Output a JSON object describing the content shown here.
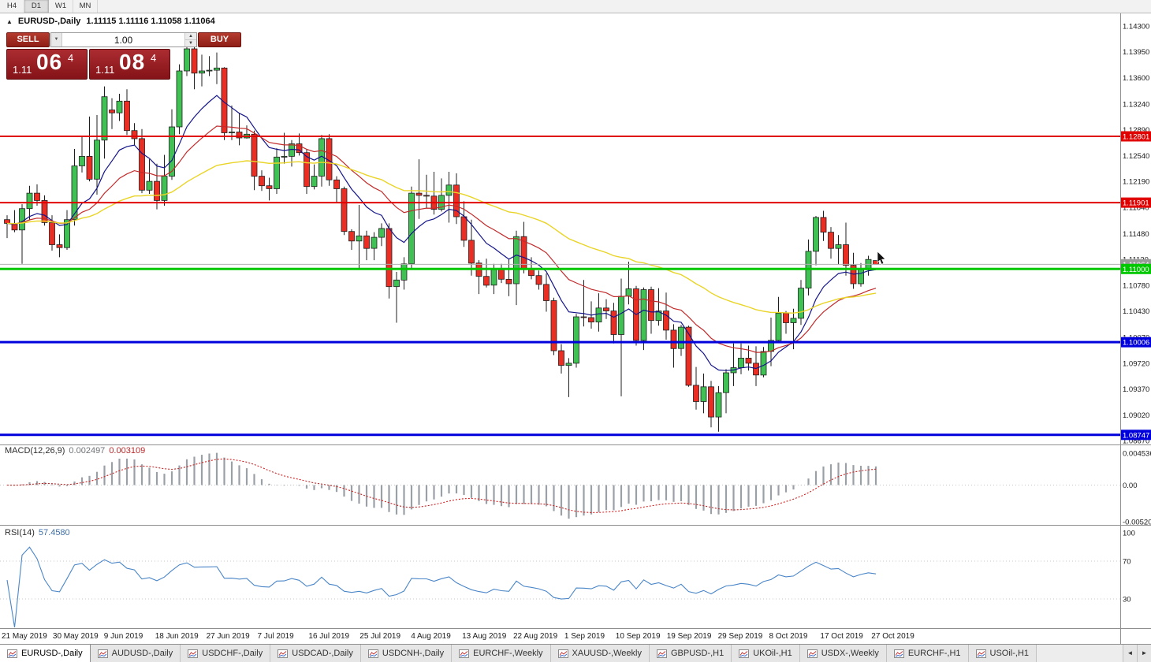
{
  "toolbar": {
    "buttons": [
      "H4",
      "D1",
      "W1",
      "MN"
    ],
    "active": "D1"
  },
  "chart_header": {
    "toggle_icon": "▲",
    "title": "EURUSD-,Daily",
    "ohlc": "1.11115 1.11116 1.11058 1.11064"
  },
  "trade_panel": {
    "sell_label": "SELL",
    "buy_label": "BUY",
    "volume": "1.00",
    "dropdown_icon": "▼",
    "spin_up_icon": "▲",
    "spin_down_icon": "▼",
    "sell_price_small": "1.11",
    "sell_price_big": "06",
    "sell_price_sup": "4",
    "buy_price_small": "1.11",
    "buy_price_big": "08",
    "buy_price_sup": "4",
    "panel_color": "#9a1c20"
  },
  "indicators": {
    "macd_label": "MACD(12,26,9)",
    "macd_value": "0.002497",
    "macd_signal_value": "0.003109",
    "rsi_label": "RSI(14)",
    "rsi_value": "57.4580"
  },
  "bottom_tabs": {
    "tabs": [
      "EURUSD-,Daily",
      "AUDUSD-,Daily",
      "USDCHF-,Daily",
      "USDCAD-,Daily",
      "USDCNH-,Daily",
      "EURCHF-,Weekly",
      "XAUUSD-,Weekly",
      "GBPUSD-,H1",
      "UKOil-,H1",
      "USDX-,Weekly",
      "EURCHF-,H1",
      "USOil-,H1"
    ],
    "active_index": 0,
    "left_arrow_icon": "◄",
    "right_arrow_icon": "►"
  },
  "chart_data": {
    "type": "candlestick",
    "symbol": "EURUSD-",
    "timeframe": "Daily",
    "price_axis_ticks": [
      "1.14300",
      "1.13950",
      "1.13600",
      "1.13240",
      "1.12890",
      "1.12540",
      "1.12190",
      "1.11840",
      "1.11480",
      "1.11130",
      "1.10780",
      "1.10430",
      "1.10070",
      "1.09720",
      "1.09370",
      "1.09020",
      "1.08670"
    ],
    "x_axis_labels": [
      "21 May 2019",
      "30 May 2019",
      "9 Jun 2019",
      "18 Jun 2019",
      "27 Jun 2019",
      "7 Jul 2019",
      "16 Jul 2019",
      "25 Jul 2019",
      "4 Aug 2019",
      "13 Aug 2019",
      "22 Aug 2019",
      "1 Sep 2019",
      "10 Sep 2019",
      "19 Sep 2019",
      "29 Sep 2019",
      "8 Oct 2019",
      "17 Oct 2019",
      "27 Oct 2019"
    ],
    "candle_colors": {
      "up": "#3fc253",
      "down": "#ea2e24",
      "outline": "#1f1f1f"
    },
    "candles": [
      [
        1.1167,
        1.1173,
        1.1142,
        1.1162
      ],
      [
        1.1162,
        1.118,
        1.115,
        1.1153
      ],
      [
        1.1153,
        1.1188,
        1.1107,
        1.1182
      ],
      [
        1.1182,
        1.1213,
        1.1166,
        1.1203
      ],
      [
        1.1203,
        1.1215,
        1.1186,
        1.1193
      ],
      [
        1.1193,
        1.12,
        1.1159,
        1.1163
      ],
      [
        1.1163,
        1.1173,
        1.1125,
        1.1133
      ],
      [
        1.1133,
        1.1147,
        1.1116,
        1.1129
      ],
      [
        1.1129,
        1.118,
        1.1126,
        1.1167
      ],
      [
        1.1167,
        1.1263,
        1.1159,
        1.124
      ],
      [
        1.124,
        1.128,
        1.1231,
        1.1253
      ],
      [
        1.1253,
        1.1307,
        1.1219,
        1.1222
      ],
      [
        1.1222,
        1.1309,
        1.1201,
        1.1275
      ],
      [
        1.1275,
        1.1348,
        1.125,
        1.1334
      ],
      [
        1.1316,
        1.1332,
        1.129,
        1.1312
      ],
      [
        1.1312,
        1.1338,
        1.1301,
        1.1328
      ],
      [
        1.1328,
        1.1344,
        1.1282,
        1.1288
      ],
      [
        1.1288,
        1.1298,
        1.1268,
        1.1277
      ],
      [
        1.1277,
        1.129,
        1.1203,
        1.1207
      ],
      [
        1.1207,
        1.1249,
        1.1202,
        1.1219
      ],
      [
        1.1219,
        1.1243,
        1.1181,
        1.1193
      ],
      [
        1.1193,
        1.1255,
        1.1186,
        1.1226
      ],
      [
        1.1226,
        1.1317,
        1.1221,
        1.1293
      ],
      [
        1.1293,
        1.1378,
        1.1283,
        1.1369
      ],
      [
        1.1369,
        1.1406,
        1.1362,
        1.1399
      ],
      [
        1.1399,
        1.1412,
        1.1344,
        1.1366
      ],
      [
        1.1366,
        1.1391,
        1.1348,
        1.1369
      ],
      [
        1.1369,
        1.1389,
        1.1362,
        1.137
      ],
      [
        1.137,
        1.1394,
        1.1351,
        1.1373
      ],
      [
        1.1373,
        1.1374,
        1.1275,
        1.1285
      ],
      [
        1.1285,
        1.1322,
        1.1275,
        1.1286
      ],
      [
        1.1286,
        1.1312,
        1.1268,
        1.1278
      ],
      [
        1.1278,
        1.1295,
        1.1277,
        1.1283
      ],
      [
        1.1283,
        1.1288,
        1.1207,
        1.1226
      ],
      [
        1.1226,
        1.1234,
        1.1206,
        1.1213
      ],
      [
        1.1213,
        1.1224,
        1.1193,
        1.1209
      ],
      [
        1.1209,
        1.1264,
        1.1202,
        1.1252
      ],
      [
        1.1252,
        1.1285,
        1.1243,
        1.1253
      ],
      [
        1.1253,
        1.1275,
        1.1239,
        1.127
      ],
      [
        1.127,
        1.1284,
        1.1254,
        1.1258
      ],
      [
        1.1258,
        1.1262,
        1.1202,
        1.1212
      ],
      [
        1.1212,
        1.1242,
        1.1208,
        1.1226
      ],
      [
        1.1226,
        1.1282,
        1.1212,
        1.1277
      ],
      [
        1.1277,
        1.1283,
        1.1213,
        1.1221
      ],
      [
        1.1221,
        1.1226,
        1.119,
        1.1209
      ],
      [
        1.1209,
        1.1212,
        1.1146,
        1.1151
      ],
      [
        1.1151,
        1.1154,
        1.1126,
        1.1138
      ],
      [
        1.1138,
        1.1187,
        1.1101,
        1.1145
      ],
      [
        1.1145,
        1.1152,
        1.1112,
        1.1128
      ],
      [
        1.1128,
        1.115,
        1.1112,
        1.1143
      ],
      [
        1.1143,
        1.1162,
        1.1131,
        1.1155
      ],
      [
        1.1155,
        1.1162,
        1.106,
        1.1076
      ],
      [
        1.1076,
        1.1096,
        1.1027,
        1.1085
      ],
      [
        1.1085,
        1.1116,
        1.1072,
        1.1107
      ],
      [
        1.1107,
        1.1212,
        1.1101,
        1.1203
      ],
      [
        1.1203,
        1.1249,
        1.1168,
        1.12
      ],
      [
        1.12,
        1.1228,
        1.1183,
        1.1199
      ],
      [
        1.1199,
        1.1232,
        1.1174,
        1.1181
      ],
      [
        1.1181,
        1.1223,
        1.1178,
        1.12
      ],
      [
        1.12,
        1.1232,
        1.1163,
        1.1214
      ],
      [
        1.1214,
        1.123,
        1.1161,
        1.1171
      ],
      [
        1.1171,
        1.1192,
        1.113,
        1.1139
      ],
      [
        1.1139,
        1.1167,
        1.1091,
        1.1108
      ],
      [
        1.1108,
        1.1112,
        1.1066,
        1.109
      ],
      [
        1.109,
        1.1114,
        1.1075,
        1.1078
      ],
      [
        1.1078,
        1.1107,
        1.1066,
        1.1099
      ],
      [
        1.1099,
        1.1107,
        1.1081,
        1.1086
      ],
      [
        1.1086,
        1.1113,
        1.1063,
        1.108
      ],
      [
        1.108,
        1.1152,
        1.1051,
        1.1144
      ],
      [
        1.1144,
        1.1164,
        1.1094,
        1.1101
      ],
      [
        1.1101,
        1.1116,
        1.1086,
        1.1091
      ],
      [
        1.1091,
        1.1098,
        1.1072,
        1.1079
      ],
      [
        1.1079,
        1.1094,
        1.1042,
        1.1057
      ],
      [
        1.1057,
        1.1061,
        1.0983,
        1.0989
      ],
      [
        1.0989,
        1.0998,
        1.0958,
        1.0969
      ],
      [
        1.0969,
        1.0979,
        1.0926,
        1.0972
      ],
      [
        1.0972,
        1.1039,
        1.0966,
        1.1035
      ],
      [
        1.1035,
        1.1085,
        1.1022,
        1.1034
      ],
      [
        1.1034,
        1.1056,
        1.1019,
        1.1028
      ],
      [
        1.1028,
        1.1067,
        1.1015,
        1.1047
      ],
      [
        1.1047,
        1.1059,
        1.1032,
        1.1043
      ],
      [
        1.1043,
        1.1054,
        1.0999,
        1.1011
      ],
      [
        1.1011,
        1.1087,
        1.0927,
        1.1063
      ],
      [
        1.1063,
        1.111,
        1.1052,
        1.1073
      ],
      [
        1.1073,
        1.1077,
        1.0996,
        1.1003
      ],
      [
        1.1003,
        1.1075,
        1.099,
        1.1072
      ],
      [
        1.1072,
        1.1076,
        1.1012,
        1.103
      ],
      [
        1.103,
        1.1074,
        1.1023,
        1.1043
      ],
      [
        1.1043,
        1.1068,
        1.1004,
        1.1017
      ],
      [
        1.1017,
        1.1025,
        1.0966,
        1.0992
      ],
      [
        1.0992,
        1.1024,
        1.0982,
        1.1021
      ],
      [
        1.1021,
        1.1023,
        1.094,
        1.0942
      ],
      [
        1.0942,
        1.0967,
        1.0909,
        1.092
      ],
      [
        1.092,
        1.0958,
        1.0904,
        1.094
      ],
      [
        1.094,
        1.0948,
        1.0885,
        1.0899
      ],
      [
        1.0899,
        1.0941,
        1.0879,
        1.0932
      ],
      [
        1.0932,
        1.0964,
        1.0904,
        1.0959
      ],
      [
        1.0959,
        1.0999,
        1.0941,
        1.0966
      ],
      [
        1.0966,
        1.0999,
        1.0957,
        1.0979
      ],
      [
        1.0979,
        1.0996,
        1.0962,
        1.0972
      ],
      [
        1.0972,
        1.0995,
        1.0941,
        1.0956
      ],
      [
        1.0956,
        1.0994,
        1.0953,
        1.0988
      ],
      [
        1.0988,
        1.1034,
        1.0968,
        1.1003
      ],
      [
        1.1003,
        1.1062,
        1.1002,
        1.104
      ],
      [
        1.104,
        1.1043,
        1.1012,
        1.1027
      ],
      [
        1.1027,
        1.1046,
        1.0991,
        1.1033
      ],
      [
        1.1033,
        1.1085,
        1.1024,
        1.1074
      ],
      [
        1.1074,
        1.114,
        1.1064,
        1.1124
      ],
      [
        1.1124,
        1.1172,
        1.1105,
        1.117
      ],
      [
        1.117,
        1.1179,
        1.1138,
        1.115
      ],
      [
        1.115,
        1.1157,
        1.1114,
        1.1128
      ],
      [
        1.1128,
        1.1146,
        1.1106,
        1.1133
      ],
      [
        1.1133,
        1.1163,
        1.1091,
        1.1105
      ],
      [
        1.1105,
        1.1122,
        1.1073,
        1.108
      ],
      [
        1.108,
        1.1108,
        1.1076,
        1.1099
      ],
      [
        1.1099,
        1.1118,
        1.1091,
        1.1113
      ],
      [
        1.11115,
        1.11116,
        1.11058,
        1.11064
      ]
    ],
    "moving_averages": [
      {
        "period": 10,
        "color": "#15158a",
        "width": 1.2
      },
      {
        "period": 21,
        "color": "#c22b2b",
        "width": 1.2
      },
      {
        "period": 50,
        "color": "#e9d427",
        "width": 1.4
      }
    ],
    "hlines": [
      {
        "price": 1.12801,
        "label": "1.12801",
        "color": "#e00000",
        "width": 2
      },
      {
        "price": 1.11901,
        "label": "1.11901",
        "color": "#e00000",
        "width": 2
      },
      {
        "price": 1.11,
        "label": "1.11000",
        "color": "#00c800",
        "width": 3
      },
      {
        "price": 1.10006,
        "label": "1.10006",
        "color": "#0000dd",
        "width": 3
      },
      {
        "price": 1.08747,
        "label": "1.08747",
        "color": "#0000dd",
        "width": 3
      }
    ],
    "bid_line": {
      "price": 1.11064,
      "label": "1.11064",
      "color": "#b0b0b0",
      "tag_color": "#9a9a9a"
    },
    "macd": {
      "params": [
        12,
        26,
        9
      ],
      "value": 0.002497,
      "signal": 0.003109,
      "histogram_color": "#9aa0a6",
      "signal_color": "#cc2222",
      "scale_ticks": [
        "0.004536",
        "0.00",
        "-0.005205"
      ]
    },
    "rsi": {
      "period": 14,
      "value": 57.458,
      "color": "#4a86c8",
      "levels": [
        70,
        30
      ],
      "scale_ticks": [
        "100",
        "70",
        "30"
      ]
    }
  }
}
